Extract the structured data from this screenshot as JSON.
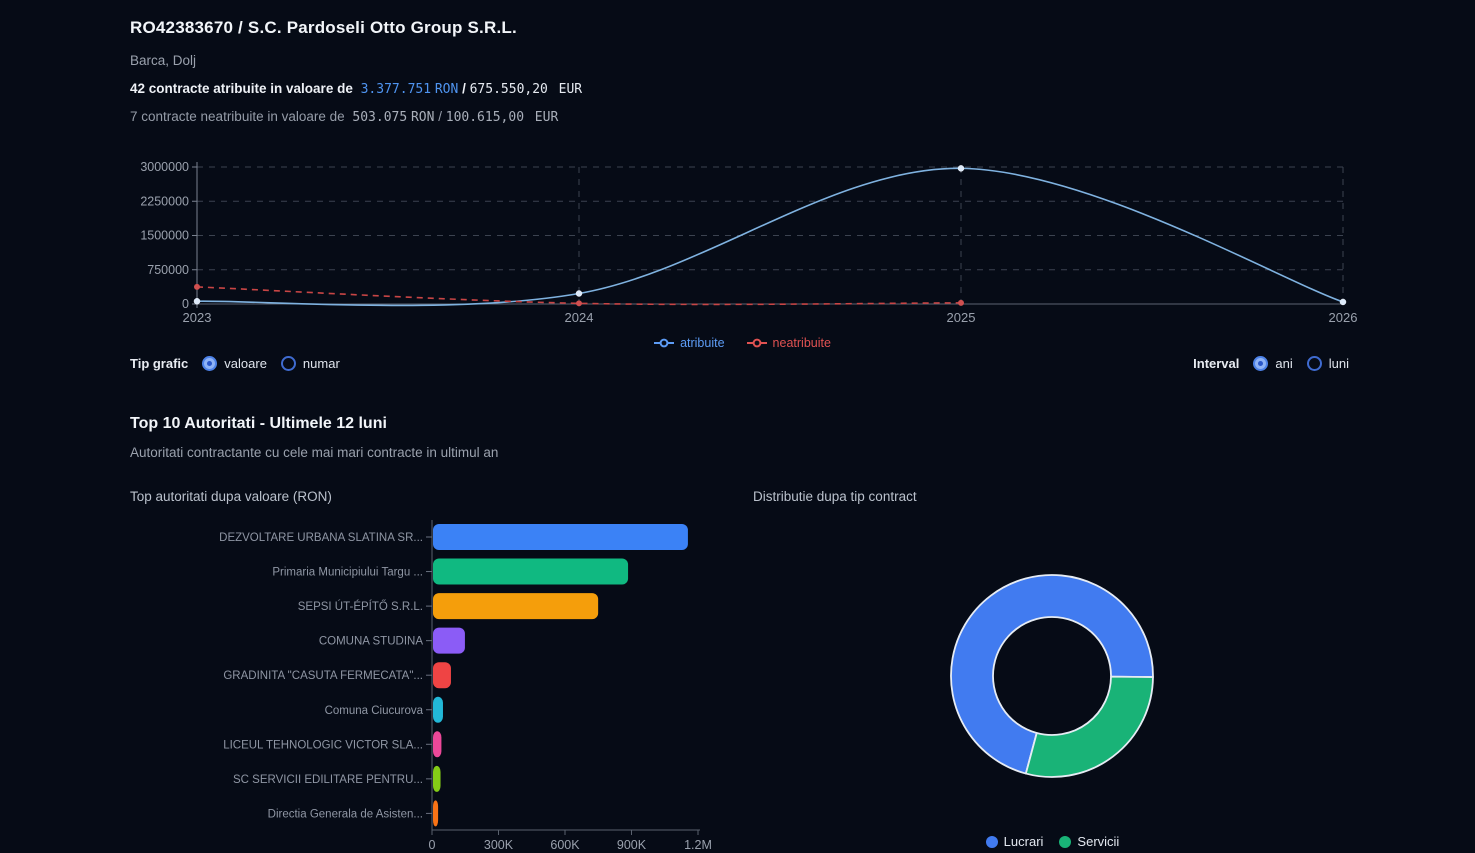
{
  "header": {
    "title": "RO42383670 / S.C. Pardoseli Otto Group S.R.L.",
    "location": "Barca, Dolj",
    "awarded": {
      "prefix": "42 contracte atribuite in valoare de",
      "ron_value": "3.377.751",
      "ron_currency": "RON",
      "separator": "/",
      "eur_value": "675.550,20",
      "eur_currency": "EUR"
    },
    "unawarded": {
      "prefix": "7 contracte neatribuite in valoare de",
      "ron_value": "503.075",
      "ron_currency": "RON",
      "separator": "/",
      "eur_value": "100.615,00",
      "eur_currency": "EUR"
    }
  },
  "controls": {
    "tip_grafic": {
      "label": "Tip grafic",
      "options": [
        {
          "label": "valoare",
          "selected": true
        },
        {
          "label": "numar",
          "selected": false
        }
      ]
    },
    "interval": {
      "label": "Interval",
      "options": [
        {
          "label": "ani",
          "selected": true
        },
        {
          "label": "luni",
          "selected": false
        }
      ]
    }
  },
  "top10": {
    "title": "Top 10 Autoritati - Ultimele 12 luni",
    "subtitle": "Autoritati contractante cu cele mai mari contracte in ultimul an",
    "bar_chart_title": "Top autoritati dupa valoare (RON)",
    "donut_chart_title": "Distributie dupa tip contract"
  },
  "colors": {
    "background": "#060b16",
    "accent_blue": "#4f94f0",
    "line_blue": "#7fb2e0",
    "line_red": "#c84545",
    "grid": "#3c4350",
    "axis": "#7a8290",
    "tick_text": "#9aa1ad"
  },
  "chart_data": [
    {
      "type": "line",
      "x": [
        "2023",
        "2024",
        "2025",
        "2026"
      ],
      "series": [
        {
          "name": "atribuite",
          "color": "#5d9cf5",
          "stroke": "#7fb2e0",
          "marker": "#ddeafa",
          "dashed": false,
          "values": [
            60000,
            230000,
            2970000,
            45000
          ]
        },
        {
          "name": "neatribuite",
          "color": "#e05252",
          "stroke": "#c84545",
          "marker": "#d05050",
          "dashed": true,
          "values": [
            375000,
            15000,
            25000,
            null
          ]
        }
      ],
      "ylim": [
        0,
        3000000
      ],
      "yticks": [
        0,
        750000,
        1500000,
        2250000,
        3000000
      ],
      "ytick_labels": [
        "0",
        "750000",
        "1500000",
        "2250000",
        "3000000"
      ],
      "grid": true,
      "legend_position": "bottom"
    },
    {
      "type": "bar",
      "orientation": "horizontal",
      "title": "Top autoritati dupa valoare (RON)",
      "categories": [
        "DEZVOLTARE URBANA SLATINA SR...",
        "Primaria Municipiului Targu ...",
        "SEPSI ÚT-ÉPÍTŐ S.R.L.",
        "COMUNA STUDINA",
        "GRADINITA \"CASUTA FERMECATA\"...",
        "Comuna Ciucurova",
        "LICEUL TEHNOLOGIC VICTOR SLA...",
        "SC SERVICII EDILITARE PENTRU...",
        "Directia Generala de Asisten..."
      ],
      "values": [
        1150000,
        880000,
        745000,
        144000,
        81000,
        45000,
        38000,
        34000,
        23000
      ],
      "colors": [
        "#3b82f6",
        "#10b981",
        "#f59e0b",
        "#8b5cf6",
        "#ef4444",
        "#22b8d8",
        "#ec4899",
        "#84cc16",
        "#f97316"
      ],
      "xlim": [
        0,
        1200000
      ],
      "xtick_values": [
        0,
        300000,
        600000,
        900000,
        1200000
      ],
      "xtick_labels": [
        "0",
        "300K",
        "600K",
        "900K",
        "1.2M"
      ]
    },
    {
      "type": "pie",
      "donut": true,
      "title": "Distributie dupa tip contract",
      "labels": [
        "Lucrari",
        "Servicii"
      ],
      "values": [
        71,
        29
      ],
      "colors": [
        "#417bf0",
        "#19b377"
      ],
      "start_angle_deg": 105,
      "legend_position": "bottom"
    }
  ]
}
